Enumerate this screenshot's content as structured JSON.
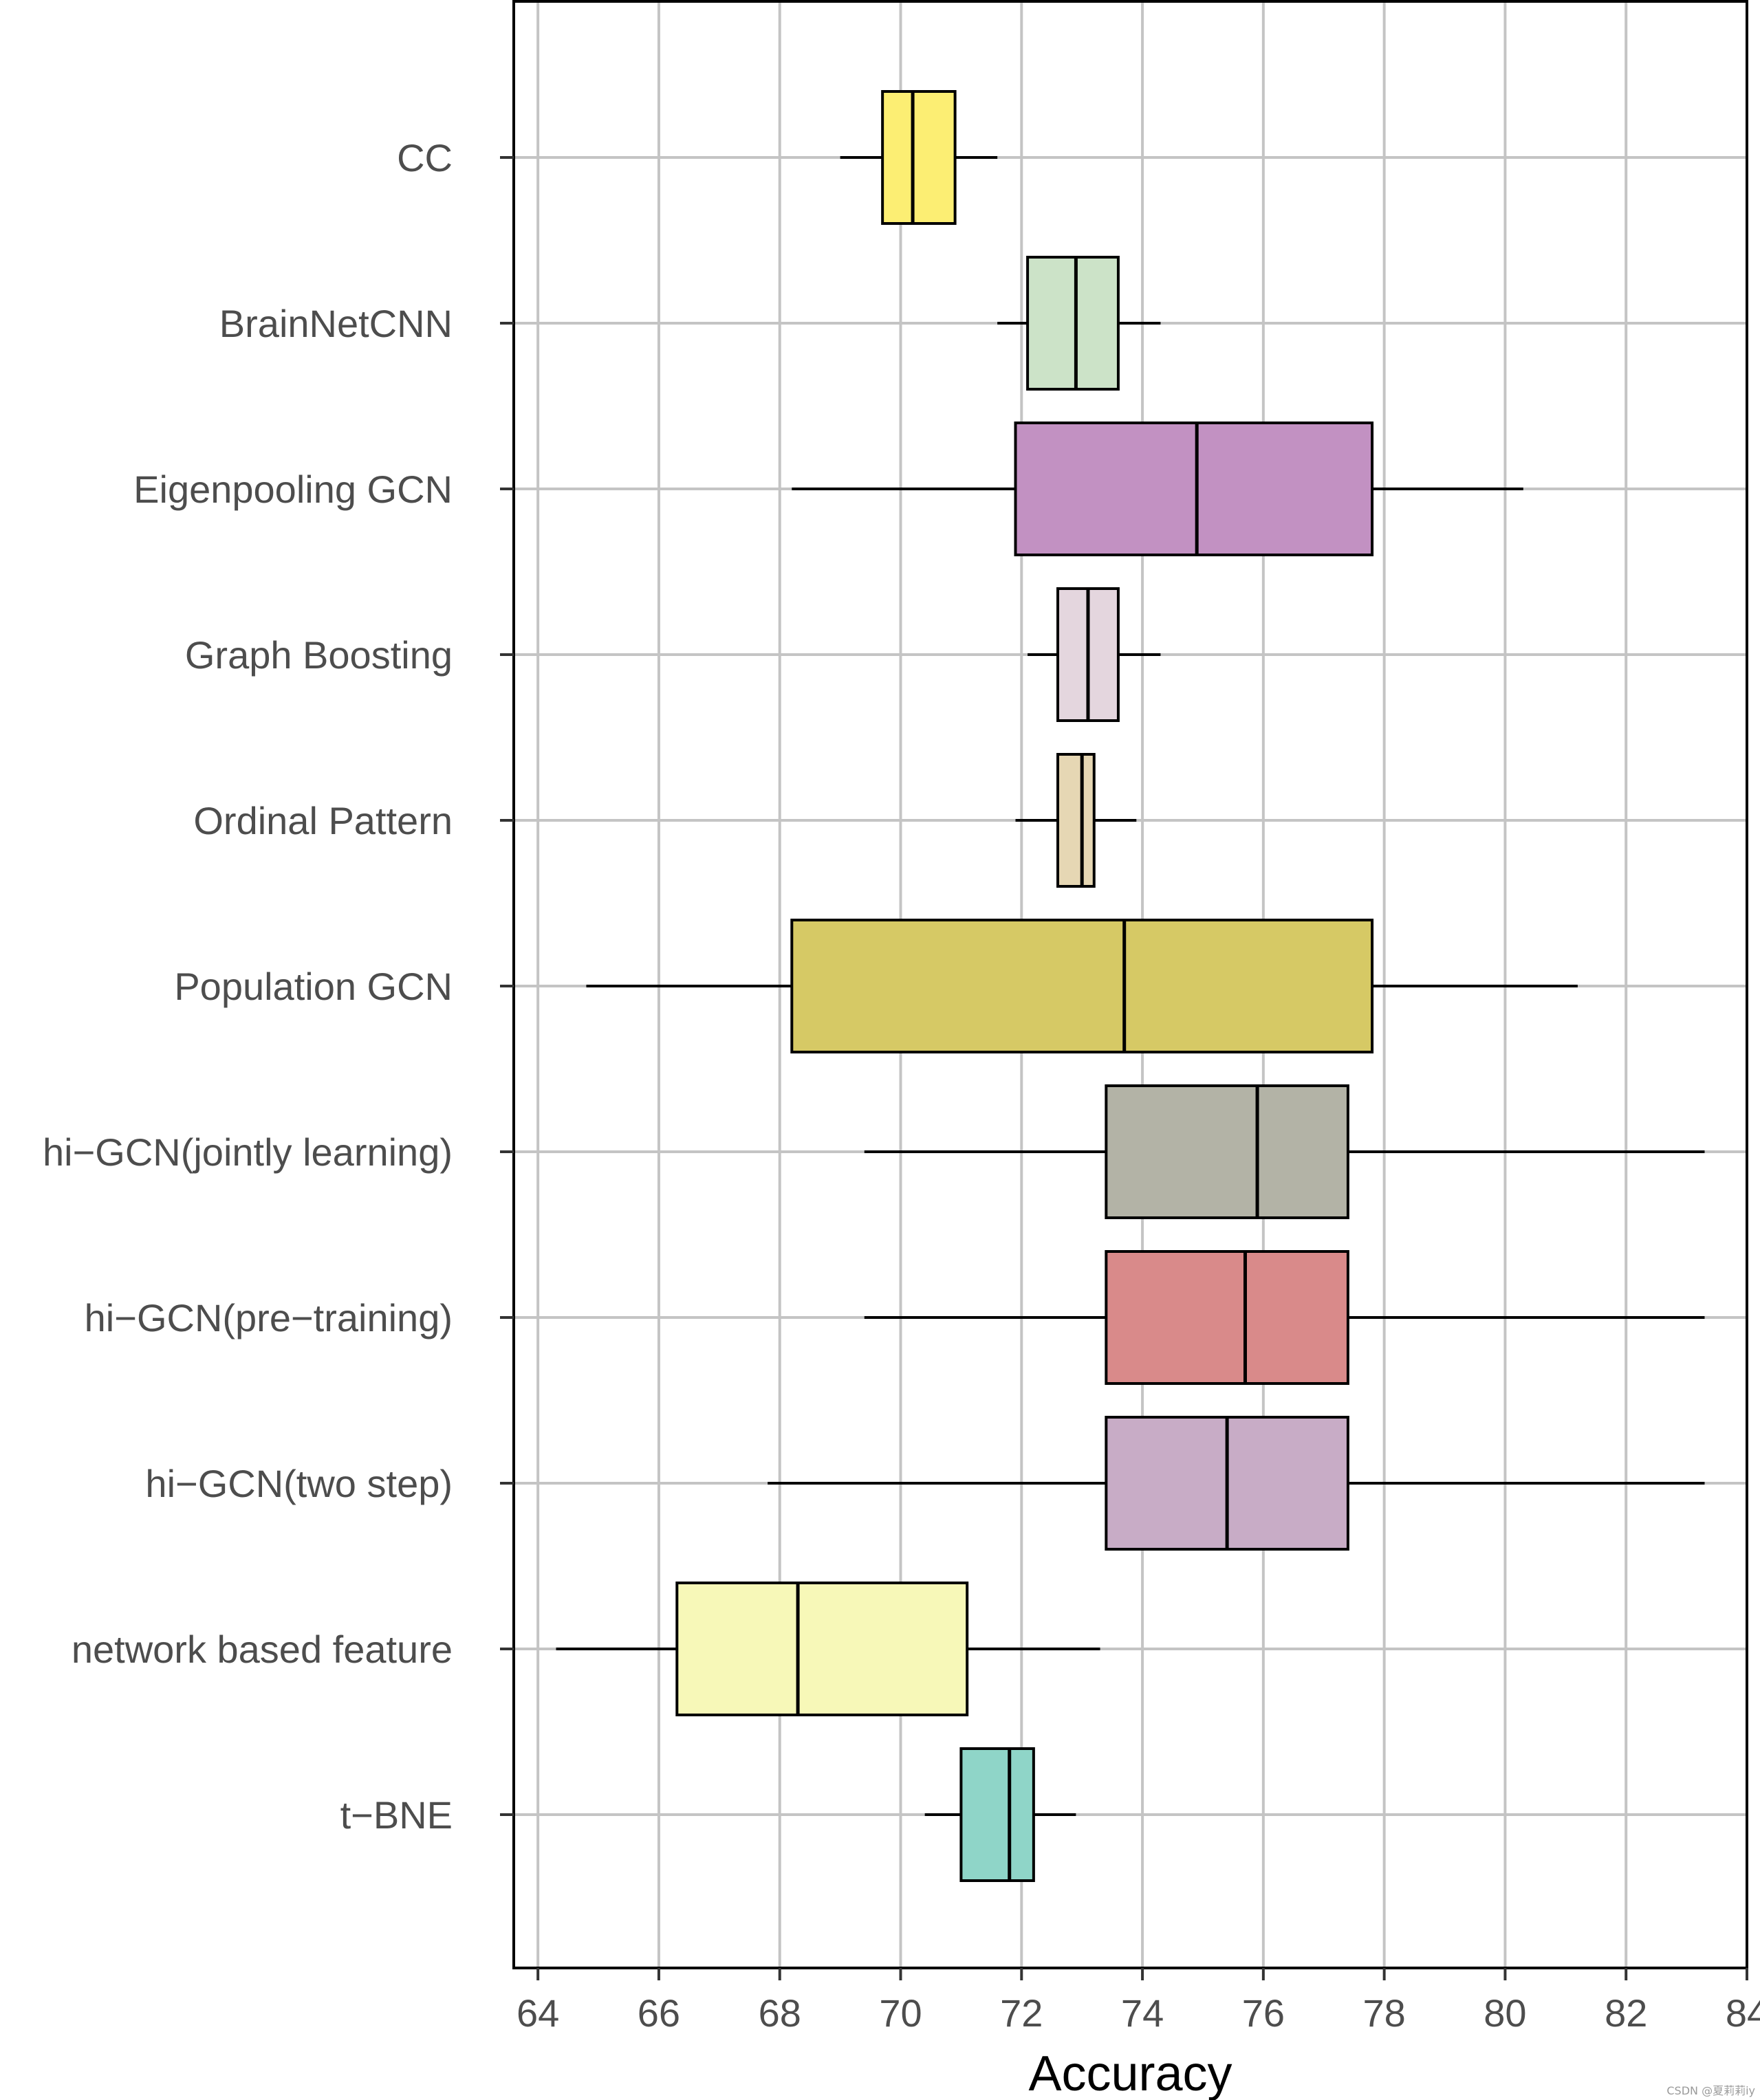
{
  "chart_data": {
    "type": "boxplot",
    "orientation": "horizontal",
    "xlabel": "Accuracy",
    "xlim": [
      63.6,
      84
    ],
    "xticks": [
      64,
      66,
      68,
      70,
      72,
      74,
      76,
      78,
      80,
      82,
      84
    ],
    "xtick_labels": [
      "64",
      "66",
      "68",
      "70",
      "72",
      "74",
      "76",
      "78",
      "80",
      "82",
      "84"
    ],
    "grid": true,
    "categories": [
      {
        "name": "CC",
        "whisker_low": 69.0,
        "q1": 69.7,
        "median": 70.2,
        "q3": 70.9,
        "whisker_high": 71.6,
        "color": "#fcee73"
      },
      {
        "name": "BrainNetCNN",
        "whisker_low": 71.6,
        "q1": 72.1,
        "median": 72.9,
        "q3": 73.6,
        "whisker_high": 74.3,
        "color": "#cce3c8"
      },
      {
        "name": "Eigenpooling GCN",
        "whisker_low": 68.2,
        "q1": 71.9,
        "median": 74.9,
        "q3": 77.8,
        "whisker_high": 80.3,
        "color": "#c291c2"
      },
      {
        "name": "Graph Boosting",
        "whisker_low": 72.1,
        "q1": 72.6,
        "median": 73.1,
        "q3": 73.6,
        "whisker_high": 74.3,
        "color": "#e4d6de"
      },
      {
        "name": "Ordinal Pattern",
        "whisker_low": 71.9,
        "q1": 72.6,
        "median": 73.0,
        "q3": 73.2,
        "whisker_high": 73.9,
        "color": "#e6d7b4"
      },
      {
        "name": "Population GCN",
        "whisker_low": 64.8,
        "q1": 68.2,
        "median": 73.7,
        "q3": 77.8,
        "whisker_high": 81.2,
        "color": "#d6c965"
      },
      {
        "name": "hi−GCN(jointly learning)",
        "whisker_low": 69.4,
        "q1": 73.4,
        "median": 75.9,
        "q3": 77.4,
        "whisker_high": 83.3,
        "color": "#b3b3a6"
      },
      {
        "name": "hi−GCN(pre−training)",
        "whisker_low": 69.4,
        "q1": 73.4,
        "median": 75.7,
        "q3": 77.4,
        "whisker_high": 83.3,
        "color": "#d98a8a"
      },
      {
        "name": "hi−GCN(two step)",
        "whisker_low": 67.8,
        "q1": 73.4,
        "median": 75.4,
        "q3": 77.4,
        "whisker_high": 83.3,
        "color": "#c8acc6"
      },
      {
        "name": "network based feature",
        "whisker_low": 64.3,
        "q1": 66.3,
        "median": 68.3,
        "q3": 71.1,
        "whisker_high": 73.3,
        "color": "#f7f8b8"
      },
      {
        "name": "t−BNE",
        "whisker_low": 70.4,
        "q1": 71.0,
        "median": 71.8,
        "q3": 72.2,
        "whisker_high": 72.9,
        "color": "#8fd5c8"
      }
    ]
  },
  "watermark": "CSDN @夏莉莉iy"
}
